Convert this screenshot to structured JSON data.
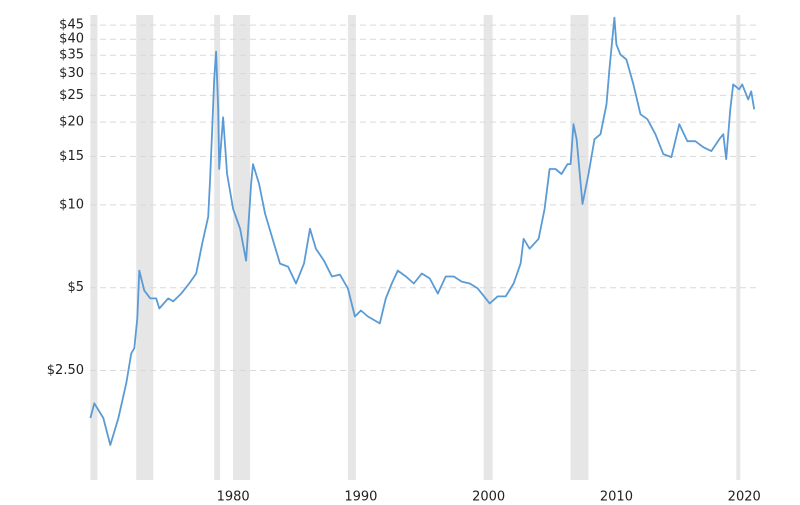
{
  "chart_data": {
    "type": "line",
    "log_y": true,
    "grid": true,
    "xlim": [
      1968.8,
      2021.0
    ],
    "xticks": [
      1980,
      1990,
      2000,
      2010,
      2020
    ],
    "ylim": [
      1.0,
      49
    ],
    "yticks": [
      {
        "value": 2.5,
        "label": "$2.50"
      },
      {
        "value": 5,
        "label": "$5"
      },
      {
        "value": 10,
        "label": "$10"
      },
      {
        "value": 15,
        "label": "$15"
      },
      {
        "value": 20,
        "label": "$20"
      },
      {
        "value": 25,
        "label": "$25"
      },
      {
        "value": 30,
        "label": "$30"
      },
      {
        "value": 35,
        "label": "$35"
      },
      {
        "value": 40,
        "label": "$40"
      },
      {
        "value": 45,
        "label": "$45"
      }
    ],
    "shaded_ranges": [
      [
        1968.83,
        1969.38
      ],
      [
        1972.42,
        1973.75
      ],
      [
        1978.52,
        1978.98
      ],
      [
        1980.0,
        1981.33
      ],
      [
        1988.98,
        1989.61
      ],
      [
        1999.61,
        2000.31
      ],
      [
        2006.41,
        2007.81
      ],
      [
        2019.38,
        2019.69
      ]
    ],
    "shade_color": "#e6e6e6",
    "x": [
      1968.83,
      1969.14,
      1969.84,
      1970.39,
      1971.02,
      1971.64,
      1972.03,
      1972.27,
      1972.5,
      1972.66,
      1973.05,
      1973.52,
      1973.98,
      1974.22,
      1974.92,
      1975.31,
      1975.94,
      1976.56,
      1977.11,
      1977.58,
      1978.05,
      1978.2,
      1978.36,
      1978.52,
      1978.67,
      1978.83,
      1978.91,
      1979.22,
      1979.53,
      1980.0,
      1980.55,
      1981.02,
      1981.41,
      1981.56,
      1982.03,
      1982.5,
      1983.2,
      1983.67,
      1984.3,
      1984.92,
      1985.55,
      1986.02,
      1986.48,
      1987.11,
      1987.73,
      1988.36,
      1988.98,
      1989.53,
      1990.0,
      1990.55,
      1991.48,
      1991.95,
      1992.42,
      1992.89,
      1993.52,
      1994.14,
      1994.77,
      1995.39,
      1996.02,
      1996.64,
      1997.27,
      1997.89,
      1998.52,
      1999.14,
      1999.77,
      2000.08,
      2000.7,
      2001.33,
      2001.95,
      2002.5,
      2002.73,
      2003.2,
      2003.91,
      2004.38,
      2004.77,
      2005.23,
      2005.7,
      2006.17,
      2006.41,
      2006.64,
      2006.88,
      2007.34,
      2007.81,
      2008.28,
      2008.75,
      2009.22,
      2009.45,
      2009.84,
      2010.0,
      2010.31,
      2010.78,
      2011.33,
      2011.88,
      2012.42,
      2013.05,
      2013.67,
      2014.3,
      2014.92,
      2015.55,
      2016.17,
      2016.8,
      2017.42,
      2018.05,
      2018.36,
      2018.59,
      2018.91,
      2019.14,
      2019.61,
      2019.84,
      2020.31,
      2020.55,
      2020.78
    ],
    "series": [
      {
        "color": "#5b9bd5",
        "values": [
          1.68,
          1.9,
          1.68,
          1.34,
          1.68,
          2.25,
          2.89,
          3.01,
          3.87,
          5.77,
          4.88,
          4.57,
          4.57,
          4.2,
          4.57,
          4.46,
          4.76,
          5.18,
          5.63,
          7.23,
          9.05,
          12.42,
          18.84,
          28.58,
          36.08,
          22.26,
          13.5,
          20.82,
          12.95,
          9.67,
          8.19,
          6.27,
          11.91,
          14.07,
          11.91,
          9.28,
          7.23,
          6.12,
          5.96,
          5.18,
          6.12,
          8.19,
          6.93,
          6.27,
          5.49,
          5.58,
          4.97,
          3.93,
          4.13,
          3.93,
          3.71,
          4.57,
          5.18,
          5.77,
          5.49,
          5.18,
          5.63,
          5.4,
          4.76,
          5.49,
          5.49,
          5.26,
          5.18,
          4.97,
          4.57,
          4.38,
          4.65,
          4.65,
          5.18,
          6.12,
          7.53,
          6.93,
          7.53,
          9.67,
          13.5,
          13.5,
          12.95,
          14.07,
          14.07,
          19.64,
          17.33,
          10.08,
          12.95,
          17.33,
          18.07,
          23.2,
          31.05,
          47.9,
          38.26,
          35.19,
          33.76,
          27.41,
          21.34,
          20.48,
          18.07,
          15.3,
          14.92,
          19.64,
          17.04,
          17.04,
          16.21,
          15.68,
          17.33,
          18.07,
          14.67,
          22.26,
          27.41,
          26.3,
          27.41,
          24.18,
          25.86,
          22.26
        ]
      }
    ]
  }
}
